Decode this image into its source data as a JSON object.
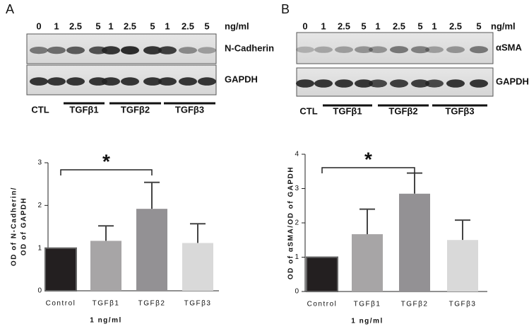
{
  "panels": [
    {
      "letter": "A",
      "doses": [
        "0",
        "1",
        "2.5",
        "5",
        "1",
        "2.5",
        "5",
        "1",
        "2.5",
        "5"
      ],
      "unit": "ng/ml",
      "rows": [
        "N-Cadherin",
        "GAPDH"
      ],
      "control": "CTL",
      "groups": [
        "TGFβ1",
        "TGFβ2",
        "TGFβ3"
      ]
    },
    {
      "letter": "B",
      "doses": [
        "0",
        "1",
        "2.5",
        "5",
        "1",
        "2.5",
        "5",
        "1",
        "2.5",
        "5"
      ],
      "unit": "ng/ml",
      "rows": [
        "αSMA",
        "GAPDH"
      ],
      "control": "CTL",
      "groups": [
        "TGFβ1",
        "TGFβ2",
        "TGFβ3"
      ]
    }
  ],
  "chart_data": [
    {
      "type": "bar",
      "ylabel": [
        "OD of N-Cadherin/",
        "OD of GAPDH"
      ],
      "xlabel": "1 ng/ml",
      "categories": [
        "Control",
        "TGFβ1",
        "TGFβ2",
        "TGFβ3"
      ],
      "values": [
        1.0,
        1.17,
        1.92,
        1.12
      ],
      "errors": [
        0,
        0.35,
        0.62,
        0.45
      ],
      "colors": [
        "#231f20",
        "#a7a5a6",
        "#939194",
        "#d9d9d9"
      ],
      "ylim": [
        0,
        3
      ],
      "yticks": [
        0,
        1,
        2,
        3
      ],
      "annotation": "*"
    },
    {
      "type": "bar",
      "ylabel": [
        "OD of αSMA/OD of GAPDH"
      ],
      "xlabel": "1 ng/ml",
      "categories": [
        "Control",
        "TGFβ1",
        "TGFβ2",
        "TGFβ3"
      ],
      "values": [
        1.0,
        1.67,
        2.85,
        1.5
      ],
      "errors": [
        0,
        0.73,
        0.6,
        0.58
      ],
      "colors": [
        "#231f20",
        "#a7a5a6",
        "#939194",
        "#d9d9d9"
      ],
      "ylim": [
        0,
        4
      ],
      "yticks": [
        0,
        1,
        2,
        3,
        4
      ],
      "annotation": "*"
    }
  ]
}
